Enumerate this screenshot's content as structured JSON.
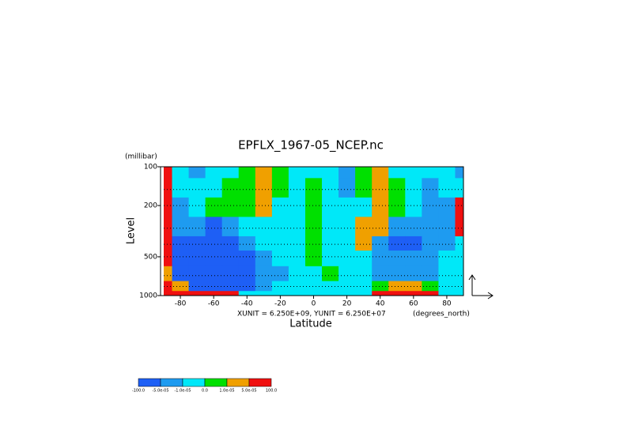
{
  "chart_data": {
    "type": "contour",
    "title": "EPFLX_1967-05_NCEP.nc",
    "y_units": "(millibar)",
    "y_label": "Level",
    "x_label": "Latitude",
    "x_units": "(degrees_north)",
    "vector_units": "XUNIT = 6.250E+09, YUNIT = 6.250E+07",
    "xlim": [
      -90,
      90
    ],
    "xticks": [
      -80,
      -60,
      -40,
      -20,
      0,
      20,
      40,
      60,
      80
    ],
    "ylim": [
      100,
      1000
    ],
    "yticks": [
      100,
      200,
      500,
      1000
    ],
    "log_y": true,
    "y_reversed": true,
    "x": [
      -90,
      -80,
      -70,
      -60,
      -50,
      -40,
      -30,
      -20,
      -10,
      0,
      10,
      20,
      30,
      40,
      50,
      60,
      70,
      80,
      90
    ],
    "levels": [
      100,
      150,
      200,
      300,
      400,
      500,
      700,
      850,
      1000
    ],
    "z": [
      [
        0.0001,
        -5e-06,
        -3e-05,
        -5e-06,
        -5e-06,
        5e-06,
        3e-05,
        5e-06,
        -5e-06,
        -5e-06,
        -5e-06,
        -3e-05,
        5e-06,
        3e-05,
        -5e-06,
        -5e-06,
        -5e-06,
        -5e-06,
        -3e-05
      ],
      [
        0.0001,
        -5e-06,
        -5e-06,
        -5e-06,
        5e-06,
        5e-06,
        3e-05,
        5e-06,
        -5e-06,
        5e-06,
        -5e-06,
        -3e-05,
        5e-06,
        3e-05,
        5e-06,
        -5e-06,
        -3e-05,
        -5e-06,
        -5e-06
      ],
      [
        0.0001,
        -3e-05,
        -5e-06,
        5e-06,
        5e-06,
        5e-06,
        3e-05,
        -5e-06,
        -5e-06,
        5e-06,
        -5e-06,
        -5e-06,
        -5e-06,
        3e-05,
        5e-06,
        -5e-06,
        -3e-05,
        -3e-05,
        0.0001
      ],
      [
        0.0001,
        -3e-05,
        -3e-05,
        -0.0001,
        -3e-05,
        -5e-06,
        -5e-06,
        -5e-06,
        -5e-06,
        5e-06,
        -5e-06,
        -5e-06,
        3e-05,
        3e-05,
        -3e-05,
        -3e-05,
        -3e-05,
        -3e-05,
        0.0001
      ],
      [
        0.0001,
        -0.0001,
        -0.0001,
        -0.0001,
        -0.0001,
        -3e-05,
        -5e-06,
        -5e-06,
        -5e-06,
        5e-06,
        -5e-06,
        -5e-06,
        3e-05,
        -3e-05,
        -0.0001,
        -0.0001,
        -3e-05,
        -3e-05,
        -5e-06
      ],
      [
        0.0001,
        -0.0001,
        -0.0001,
        -0.0001,
        -0.0001,
        -0.0001,
        -3e-05,
        -5e-06,
        -5e-06,
        5e-06,
        -5e-06,
        -5e-06,
        -5e-06,
        -3e-05,
        -3e-05,
        -3e-05,
        -3e-05,
        -5e-06,
        -5e-06
      ],
      [
        3e-05,
        -0.0001,
        -0.0001,
        -0.0001,
        -0.0001,
        -0.0001,
        -3e-05,
        -3e-05,
        -5e-06,
        -5e-06,
        5e-06,
        -5e-06,
        -5e-06,
        -3e-05,
        -3e-05,
        -3e-05,
        -3e-05,
        -5e-06,
        -5e-06
      ],
      [
        0.0001,
        3e-05,
        -0.0001,
        -0.0001,
        -0.0001,
        -0.0001,
        -3e-05,
        -5e-06,
        -5e-06,
        -5e-06,
        -5e-06,
        -5e-06,
        -5e-06,
        5e-06,
        3e-05,
        3e-05,
        5e-06,
        -5e-06,
        -5e-06
      ],
      [
        0.0001,
        0.0001,
        0.0001,
        0.0001,
        0.0001,
        -5e-06,
        -5e-06,
        -5e-06,
        -5e-06,
        -5e-06,
        -5e-06,
        -5e-06,
        -5e-06,
        0.0001,
        0.0001,
        0.0001,
        0.0001,
        -5e-06,
        -5e-06
      ]
    ],
    "contour_levels": [
      {
        "value": -100,
        "label": "-100.0"
      },
      {
        "value": -5e-05,
        "label": "-5.0e-05"
      },
      {
        "value": -1e-05,
        "label": "-1.0e-05"
      },
      {
        "value": 0,
        "label": "0.0"
      },
      {
        "value": 1e-05,
        "label": "1.0e-05"
      },
      {
        "value": 5e-05,
        "label": "5.0e-05"
      },
      {
        "value": 100,
        "label": "100.0"
      }
    ],
    "colors": [
      "#1e5ff5",
      "#1e9bf0",
      "#00e8f8",
      "#00e000",
      "#f0a000",
      "#f01010"
    ]
  }
}
